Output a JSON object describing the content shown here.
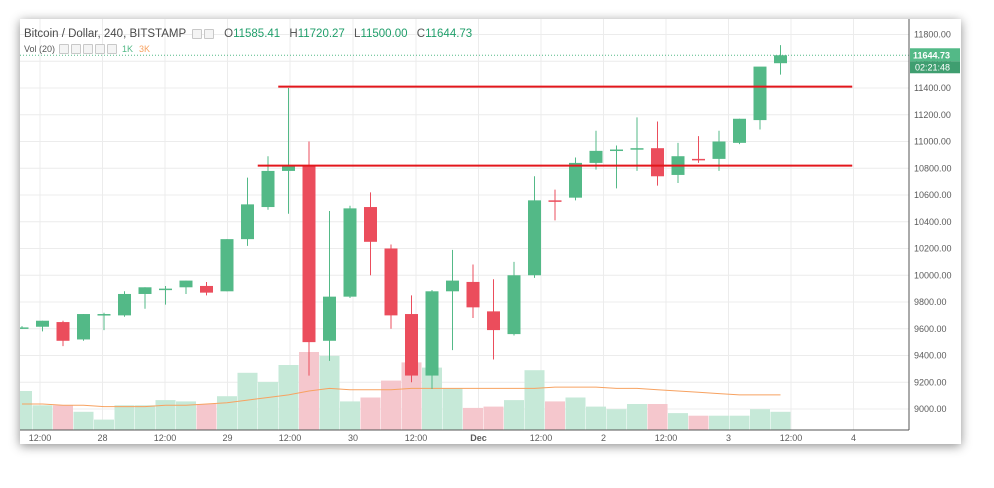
{
  "header": {
    "symbol": "Bitcoin / Dollar, 240, BITSTAMP",
    "open_label": "O",
    "open": "11585.41",
    "high_label": "H",
    "high": "11720.27",
    "low_label": "L",
    "low": "11500.00",
    "close_label": "C",
    "close": "11644.73"
  },
  "volume_legend": {
    "label": "Vol (20)",
    "v1": "1K",
    "v2": "3K"
  },
  "price_badge": {
    "price": "11644.73",
    "countdown": "02:21:48"
  },
  "colors": {
    "up": "#53b987",
    "down": "#eb4d5c",
    "vol_up": "#c6e9d8",
    "vol_down": "#f5c7cd",
    "ma": "#f7a261",
    "support_line": "#e3171c",
    "price_line": "#53b987"
  },
  "chart_data": {
    "type": "candlestick",
    "title": "Bitcoin / Dollar, 240, BITSTAMP",
    "y_axis": {
      "ticks": [
        9000,
        9200,
        9400,
        9600,
        9800,
        10000,
        10200,
        10400,
        10600,
        10800,
        11000,
        11200,
        11400,
        11600,
        11800
      ],
      "range": [
        8850,
        11850
      ]
    },
    "x_axis": {
      "labels": [
        "12:00",
        "28",
        "12:00",
        "29",
        "12:00",
        "30",
        "12:00",
        "Dec",
        "12:00",
        "2",
        "12:00",
        "3",
        "12:00",
        "4"
      ]
    },
    "candles": [
      {
        "o": 9610,
        "h": 9620,
        "l": 9600,
        "c": 9610
      },
      {
        "o": 9615,
        "h": 9660,
        "l": 9580,
        "c": 9660
      },
      {
        "o": 9650,
        "h": 9660,
        "l": 9470,
        "c": 9510
      },
      {
        "o": 9520,
        "h": 9710,
        "l": 9510,
        "c": 9710
      },
      {
        "o": 9705,
        "h": 9720,
        "l": 9590,
        "c": 9710
      },
      {
        "o": 9700,
        "h": 9880,
        "l": 9690,
        "c": 9860
      },
      {
        "o": 9860,
        "h": 9910,
        "l": 9750,
        "c": 9910
      },
      {
        "o": 9900,
        "h": 9920,
        "l": 9780,
        "c": 9900
      },
      {
        "o": 9910,
        "h": 9960,
        "l": 9860,
        "c": 9960
      },
      {
        "o": 9920,
        "h": 9950,
        "l": 9850,
        "c": 9870
      },
      {
        "o": 9880,
        "h": 10270,
        "l": 9880,
        "c": 10270
      },
      {
        "o": 10270,
        "h": 10730,
        "l": 10220,
        "c": 10530
      },
      {
        "o": 10510,
        "h": 10890,
        "l": 10490,
        "c": 10780
      },
      {
        "o": 10780,
        "h": 11400,
        "l": 10460,
        "c": 10820
      },
      {
        "o": 10820,
        "h": 11000,
        "l": 9250,
        "c": 9500
      },
      {
        "o": 9510,
        "h": 10480,
        "l": 9360,
        "c": 9840
      },
      {
        "o": 9840,
        "h": 10520,
        "l": 9830,
        "c": 10500
      },
      {
        "o": 10510,
        "h": 10620,
        "l": 10000,
        "c": 10250
      },
      {
        "o": 10200,
        "h": 10230,
        "l": 9600,
        "c": 9700
      },
      {
        "o": 9710,
        "h": 9850,
        "l": 9200,
        "c": 9250
      },
      {
        "o": 9250,
        "h": 9890,
        "l": 9150,
        "c": 9880
      },
      {
        "o": 9880,
        "h": 10190,
        "l": 9440,
        "c": 9960
      },
      {
        "o": 9950,
        "h": 10080,
        "l": 9680,
        "c": 9760
      },
      {
        "o": 9730,
        "h": 9970,
        "l": 9370,
        "c": 9590
      },
      {
        "o": 9560,
        "h": 10100,
        "l": 9550,
        "c": 10000
      },
      {
        "o": 10000,
        "h": 10740,
        "l": 9980,
        "c": 10560
      },
      {
        "o": 10560,
        "h": 10640,
        "l": 10410,
        "c": 10550
      },
      {
        "o": 10580,
        "h": 10880,
        "l": 10560,
        "c": 10840
      },
      {
        "o": 10840,
        "h": 11080,
        "l": 10790,
        "c": 10930
      },
      {
        "o": 10930,
        "h": 10970,
        "l": 10650,
        "c": 10940
      },
      {
        "o": 10950,
        "h": 11180,
        "l": 10780,
        "c": 10950
      },
      {
        "o": 10950,
        "h": 11150,
        "l": 10670,
        "c": 10740
      },
      {
        "o": 10750,
        "h": 10990,
        "l": 10690,
        "c": 10890
      },
      {
        "o": 10870,
        "h": 11040,
        "l": 10840,
        "c": 10860
      },
      {
        "o": 10870,
        "h": 11080,
        "l": 10780,
        "c": 11000
      },
      {
        "o": 10990,
        "h": 11170,
        "l": 10980,
        "c": 11170
      },
      {
        "o": 11160,
        "h": 11550,
        "l": 11090,
        "c": 11560
      },
      {
        "o": 11585.41,
        "h": 11720.27,
        "l": 11500,
        "c": 11644.73
      }
    ],
    "volumes": [
      0.3,
      0.19,
      0.19,
      0.14,
      0.08,
      0.19,
      0.19,
      0.23,
      0.22,
      0.2,
      0.26,
      0.44,
      0.37,
      0.5,
      0.6,
      0.57,
      0.22,
      0.25,
      0.38,
      0.52,
      0.48,
      0.32,
      0.17,
      0.18,
      0.23,
      0.46,
      0.22,
      0.25,
      0.18,
      0.16,
      0.2,
      0.2,
      0.13,
      0.11,
      0.11,
      0.11,
      0.16,
      0.14
    ],
    "ma": [
      0.2,
      0.2,
      0.19,
      0.19,
      0.18,
      0.18,
      0.18,
      0.19,
      0.19,
      0.2,
      0.21,
      0.23,
      0.25,
      0.27,
      0.3,
      0.32,
      0.31,
      0.31,
      0.31,
      0.32,
      0.32,
      0.32,
      0.32,
      0.32,
      0.32,
      0.32,
      0.33,
      0.33,
      0.33,
      0.32,
      0.32,
      0.31,
      0.3,
      0.29,
      0.28,
      0.27,
      0.27,
      0.27
    ],
    "horizontal_lines": [
      {
        "price": 11410,
        "from_candle": 12.5,
        "to_candle": 40.5
      },
      {
        "price": 10820,
        "from_candle": 11.5,
        "to_candle": 40.5
      }
    ],
    "last_price": 11644.73
  }
}
